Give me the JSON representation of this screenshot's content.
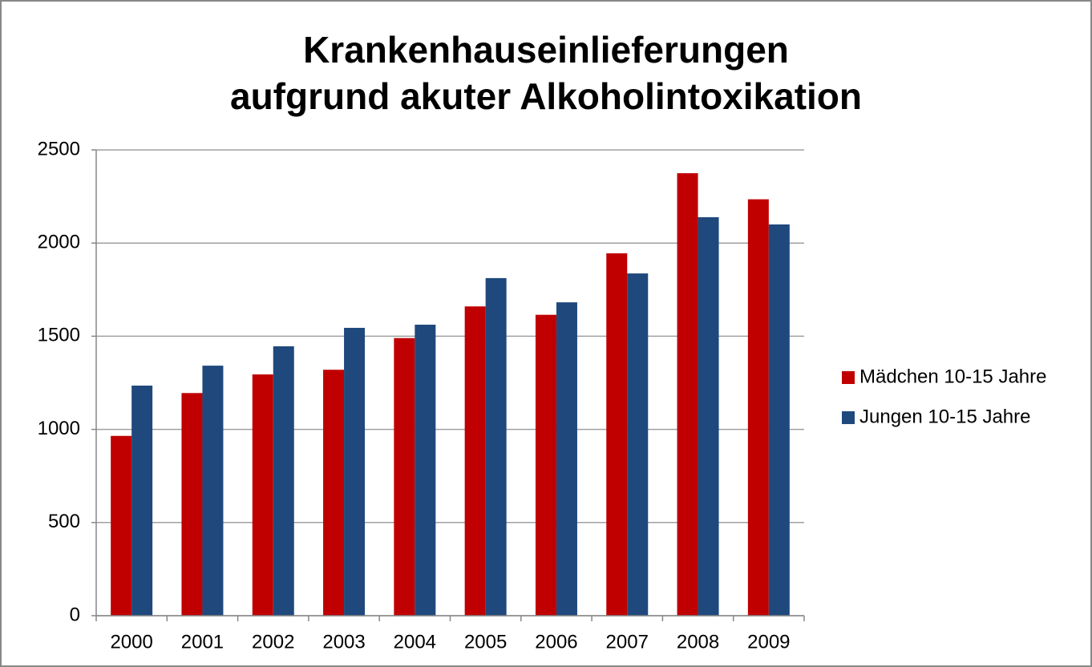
{
  "chart_data": {
    "type": "bar",
    "title": [
      "Krankenhauseinlieferungen",
      "aufgrund akuter Alkoholintoxikation"
    ],
    "categories": [
      "2000",
      "2001",
      "2002",
      "2003",
      "2004",
      "2005",
      "2006",
      "2007",
      "2008",
      "2009"
    ],
    "series": [
      {
        "name": "Mädchen 10-15 Jahre",
        "color": "#c00000",
        "values": [
          965,
          1195,
          1295,
          1320,
          1490,
          1660,
          1615,
          1945,
          2375,
          2235
        ]
      },
      {
        "name": "Jungen 10-15 Jahre",
        "color": "#1f497d",
        "values": [
          1235,
          1342,
          1446,
          1545,
          1562,
          1812,
          1682,
          1837,
          2139,
          2100
        ]
      }
    ],
    "ylim": [
      0,
      2500
    ],
    "yticks": [
      0,
      500,
      1000,
      1500,
      2000,
      2500
    ],
    "grid": true,
    "legend": "right"
  }
}
